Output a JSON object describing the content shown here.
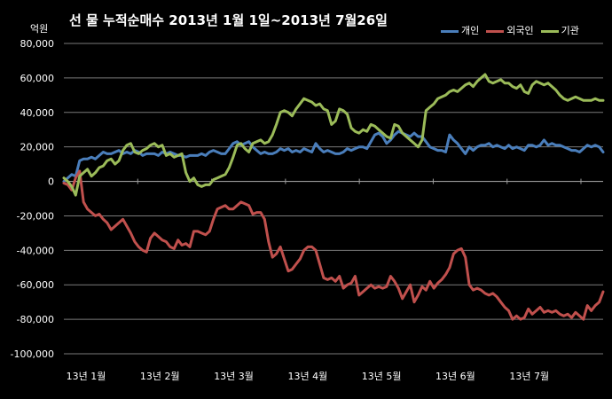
{
  "chart_data": {
    "type": "line",
    "title": "선 물 누적순매수 2013년 1월 1일~2013년 7월26일",
    "ylabel": "억원",
    "ylim": [
      -100000,
      80000
    ],
    "yticks": [
      "80,000",
      "60,000",
      "40,000",
      "20,000",
      "0",
      "-20,000",
      "-40,000",
      "-60,000",
      "-80,000",
      "-100,000"
    ],
    "xticks": [
      "13년 1월",
      "13년 2월",
      "13년 3월",
      "13년 4월",
      "13년 5월",
      "13년 6월",
      "13년 7월"
    ],
    "grid": true,
    "legend_position": "top-right",
    "series": [
      {
        "name": "개인",
        "color": "#4a7ebb",
        "values": [
          0,
          2000,
          4000,
          3000,
          12000,
          13000,
          13000,
          14000,
          13000,
          15000,
          17000,
          16000,
          16000,
          17000,
          18000,
          16000,
          17000,
          16000,
          18000,
          17000,
          15000,
          16000,
          16000,
          16000,
          15000,
          17000,
          16000,
          17000,
          16000,
          15000,
          15000,
          14000,
          15000,
          15000,
          15000,
          16000,
          15000,
          17000,
          18000,
          17000,
          16000,
          16000,
          19000,
          22000,
          23000,
          21000,
          22000,
          23000,
          20000,
          18000,
          16000,
          17000,
          16000,
          16000,
          17000,
          19000,
          18000,
          19000,
          17000,
          18000,
          17000,
          19000,
          18000,
          17000,
          22000,
          19000,
          17000,
          18000,
          17000,
          16000,
          16000,
          17000,
          19000,
          18000,
          19000,
          20000,
          20000,
          19000,
          23000,
          27000,
          28000,
          26000,
          22000,
          24000,
          27000,
          29000,
          28000,
          27000,
          26000,
          28000,
          26000,
          26000,
          23000,
          20000,
          19000,
          18000,
          18000,
          17000,
          27000,
          24000,
          22000,
          19000,
          16000,
          20000,
          18000,
          20000,
          21000,
          21000,
          22000,
          20000,
          21000,
          20000,
          19000,
          21000,
          19000,
          20000,
          19000,
          18000,
          21000,
          21000,
          20000,
          21000,
          24000,
          21000,
          22000,
          21000,
          21000,
          20000,
          19000,
          18000,
          18000,
          17000,
          19000,
          21000,
          20000,
          21000,
          20000,
          17000
        ]
      },
      {
        "name": "외국인",
        "color": "#c0504d",
        "values": [
          -1000,
          -2000,
          -5000,
          2000,
          6000,
          -12000,
          -16000,
          -18000,
          -20000,
          -19000,
          -22000,
          -24000,
          -28000,
          -26000,
          -24000,
          -22000,
          -26000,
          -30000,
          -35000,
          -38000,
          -40000,
          -41000,
          -33000,
          -30000,
          -32000,
          -34000,
          -35000,
          -38000,
          -39000,
          -34000,
          -37000,
          -36000,
          -38000,
          -29000,
          -29000,
          -30000,
          -31000,
          -29000,
          -22000,
          -16000,
          -15000,
          -14000,
          -16000,
          -16000,
          -14000,
          -12000,
          -13000,
          -14000,
          -19000,
          -18000,
          -18000,
          -22000,
          -35000,
          -44000,
          -42000,
          -38000,
          -45000,
          -52000,
          -51000,
          -48000,
          -45000,
          -40000,
          -38000,
          -38000,
          -40000,
          -48000,
          -56000,
          -57000,
          -56000,
          -58000,
          -55000,
          -62000,
          -60000,
          -59000,
          -55000,
          -66000,
          -64000,
          -62000,
          -60000,
          -62000,
          -61000,
          -62000,
          -61000,
          -55000,
          -58000,
          -62000,
          -68000,
          -64000,
          -60000,
          -70000,
          -66000,
          -61000,
          -63000,
          -58000,
          -62000,
          -59000,
          -57000,
          -54000,
          -50000,
          -42000,
          -40000,
          -39000,
          -44000,
          -60000,
          -63000,
          -62000,
          -63000,
          -65000,
          -66000,
          -65000,
          -67000,
          -70000,
          -73000,
          -75000,
          -80000,
          -78000,
          -80000,
          -79000,
          -74000,
          -77000,
          -75000,
          -73000,
          -76000,
          -75000,
          -76000,
          -75000,
          -77000,
          -78000,
          -77000,
          -79000,
          -76000,
          -78000,
          -80000,
          -72000,
          -75000,
          -72000,
          -70000,
          -64000
        ]
      },
      {
        "name": "기관",
        "color": "#9bbb59",
        "values": [
          2000,
          0,
          -3000,
          -8000,
          3000,
          5000,
          7000,
          3000,
          5000,
          8000,
          9000,
          12000,
          13000,
          10000,
          12000,
          18000,
          21000,
          22000,
          17000,
          16000,
          18000,
          19000,
          21000,
          22000,
          20000,
          21000,
          15000,
          16000,
          14000,
          15000,
          16000,
          5000,
          0,
          2000,
          -2000,
          -3000,
          -2000,
          -2000,
          1000,
          2000,
          3000,
          4000,
          8000,
          14000,
          21000,
          22000,
          19000,
          17000,
          22000,
          23000,
          24000,
          22000,
          23000,
          27000,
          33000,
          40000,
          41000,
          40000,
          38000,
          42000,
          45000,
          48000,
          47000,
          46000,
          44000,
          45000,
          42000,
          41000,
          33000,
          35000,
          42000,
          41000,
          39000,
          31000,
          29000,
          28000,
          30000,
          29000,
          33000,
          32000,
          30000,
          28000,
          26000,
          25000,
          33000,
          32000,
          28000,
          26000,
          24000,
          22000,
          20000,
          24000,
          41000,
          43000,
          45000,
          48000,
          49000,
          50000,
          52000,
          53000,
          52000,
          54000,
          56000,
          57000,
          55000,
          58000,
          60000,
          62000,
          58000,
          57000,
          58000,
          59000,
          57000,
          57000,
          55000,
          54000,
          56000,
          52000,
          51000,
          56000,
          58000,
          57000,
          56000,
          57000,
          55000,
          53000,
          50000,
          48000,
          47000,
          48000,
          49000,
          48000,
          47000,
          47000,
          47000,
          48000,
          47000,
          47000
        ]
      }
    ]
  }
}
